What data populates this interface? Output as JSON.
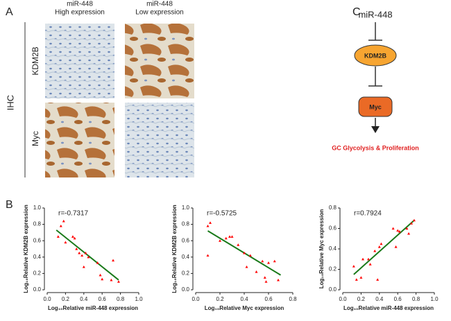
{
  "panel_labels": {
    "a": "A",
    "b": "B",
    "c": "C"
  },
  "ihc": {
    "side_label": "IHC",
    "columns": [
      {
        "line1": "miR-448",
        "line2": "High expression"
      },
      {
        "line1": "miR-448",
        "line2": "Low expression"
      }
    ],
    "rows": [
      "KDM2B",
      "Myc"
    ]
  },
  "diagram": {
    "top": "miR-448",
    "node1": "KDM2B",
    "node2": "Myc",
    "outcome": "GC Glycolysis & Proliferation"
  },
  "chart_data": [
    {
      "type": "scatter",
      "annotation": "r=-0.7317",
      "xlabel": "Log₁₀Relative miR-448 expression",
      "ylabel": "Log₁₀Relative KDM2B expression",
      "color": "#ff0000",
      "x": [
        0.12,
        0.15,
        0.18,
        0.2,
        0.28,
        0.3,
        0.32,
        0.35,
        0.38,
        0.4,
        0.42,
        0.45,
        0.55,
        0.58,
        0.6,
        0.7,
        0.72,
        0.78
      ],
      "values": [
        0.65,
        0.78,
        0.84,
        0.58,
        0.65,
        0.63,
        0.5,
        0.45,
        0.42,
        0.28,
        0.45,
        0.4,
        0.33,
        0.18,
        0.13,
        0.12,
        0.36,
        0.1
      ],
      "fit": {
        "color": "#1a7a1a",
        "x": [
          0.1,
          0.78
        ],
        "y": [
          0.73,
          0.12
        ]
      },
      "xlim": [
        0,
        1
      ],
      "ylim": [
        0,
        1
      ],
      "xticks": [
        {
          "value": 0,
          "label": "0.0"
        },
        0.2,
        0.4,
        0.6,
        0.8,
        {
          "value": 1,
          "label": "1.0"
        }
      ],
      "yticks": [
        {
          "value": 0,
          "label": "0.0"
        },
        0.2,
        0.4,
        0.6,
        0.8,
        {
          "value": 1,
          "label": "1.0"
        }
      ]
    },
    {
      "type": "scatter",
      "annotation": "r=-0.5725",
      "xlabel": "Log₁₀Relative Myc expression",
      "ylabel": "Log₁₀Relative KDM2B expression",
      "color": "#ff0000",
      "x": [
        0.1,
        0.12,
        0.1,
        0.2,
        0.25,
        0.28,
        0.3,
        0.35,
        0.4,
        0.42,
        0.45,
        0.5,
        0.55,
        0.57,
        0.58,
        0.6,
        0.65,
        0.68
      ],
      "values": [
        0.78,
        0.82,
        0.42,
        0.6,
        0.63,
        0.65,
        0.65,
        0.55,
        0.45,
        0.28,
        0.42,
        0.22,
        0.35,
        0.15,
        0.1,
        0.33,
        0.35,
        0.12
      ],
      "fit": {
        "color": "#1a7a1a",
        "x": [
          0.1,
          0.7
        ],
        "y": [
          0.72,
          0.18
        ]
      },
      "xlim": [
        0,
        0.8
      ],
      "ylim": [
        0,
        1
      ],
      "xticks": [
        {
          "value": 0,
          "label": "0.0"
        },
        0.2,
        0.4,
        0.6,
        0.8
      ],
      "yticks": [
        {
          "value": 0,
          "label": "0.0"
        },
        0.2,
        0.4,
        0.6,
        0.8,
        {
          "value": 1,
          "label": "1.0"
        }
      ]
    },
    {
      "type": "scatter",
      "annotation": "r=0.7924",
      "xlabel": "Log₁₀Relative miR-448 expression",
      "ylabel": "Log₁₀Relative Myc expression",
      "color": "#ff0000",
      "x": [
        0.12,
        0.15,
        0.2,
        0.22,
        0.28,
        0.3,
        0.35,
        0.38,
        0.4,
        0.42,
        0.55,
        0.58,
        0.6,
        0.62,
        0.7,
        0.72,
        0.75,
        0.78
      ],
      "values": [
        0.23,
        0.1,
        0.12,
        0.3,
        0.3,
        0.25,
        0.38,
        0.1,
        0.42,
        0.45,
        0.6,
        0.42,
        0.58,
        0.57,
        0.6,
        0.55,
        0.65,
        0.68
      ],
      "fit": {
        "color": "#1a7a1a",
        "x": [
          0.12,
          0.78
        ],
        "y": [
          0.15,
          0.68
        ]
      },
      "xlim": [
        0,
        1
      ],
      "ylim": [
        0,
        0.8
      ],
      "xticks": [
        {
          "value": 0,
          "label": "0.0"
        },
        0.2,
        0.4,
        0.6,
        0.8,
        {
          "value": 1,
          "label": "1.0"
        }
      ],
      "yticks": [
        {
          "value": 0,
          "label": "0.0"
        },
        0.2,
        0.4,
        0.6,
        0.8
      ]
    }
  ]
}
